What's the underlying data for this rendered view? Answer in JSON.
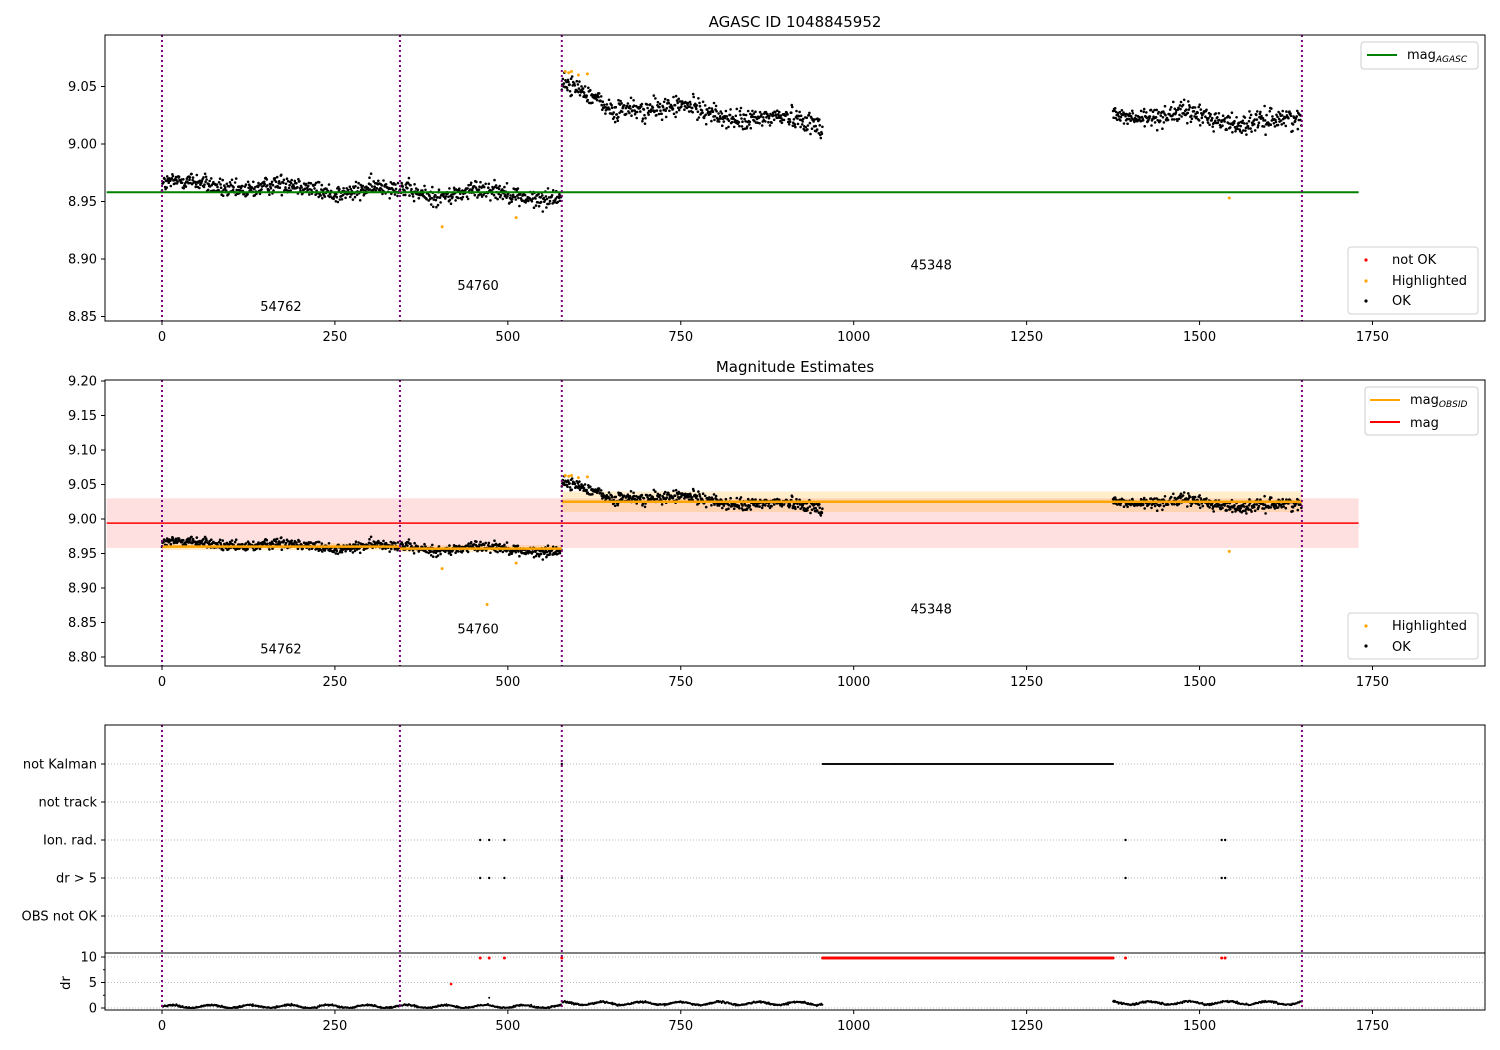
{
  "chart_data": [
    {
      "type": "scatter",
      "title": "AGASC ID 1048845952",
      "xlim": [
        -80,
        1915
      ],
      "ylim": [
        8.845,
        9.095
      ],
      "xticks": [
        0,
        250,
        500,
        750,
        1000,
        1250,
        1500,
        1750
      ],
      "yticks": [
        "8.85",
        "8.90",
        "8.95",
        "9.00",
        "9.05"
      ],
      "lines_legend": [
        {
          "label": "mag",
          "sub": "AGASC",
          "color": "#008000",
          "value": 8.958,
          "x": [
            -80,
            1730
          ]
        }
      ],
      "points_legend": [
        {
          "label": "not OK",
          "color": "#ff0000"
        },
        {
          "label": "Highlighted",
          "color": "#ffa500"
        },
        {
          "label": "OK",
          "color": "#000000"
        }
      ],
      "obsid_labels": [
        {
          "text": "54762",
          "x": 172,
          "y": 8.855
        },
        {
          "text": "54760",
          "x": 457,
          "y": 8.873
        },
        {
          "text": "45348",
          "x": 1112,
          "y": 8.891
        }
      ],
      "highlighted": [
        [
          405,
          8.928
        ],
        [
          512,
          8.936
        ],
        [
          583,
          9.063
        ],
        [
          588,
          9.062
        ],
        [
          592,
          9.063
        ],
        [
          602,
          9.06
        ],
        [
          615,
          9.061
        ],
        [
          1543,
          8.953
        ]
      ]
    },
    {
      "type": "scatter",
      "title": "Magnitude Estimates",
      "xlim": [
        -80,
        1915
      ],
      "ylim": [
        8.787,
        9.2
      ],
      "xticks": [
        0,
        250,
        500,
        750,
        1000,
        1250,
        1500,
        1750
      ],
      "yticks": [
        "8.80",
        "8.85",
        "8.90",
        "8.95",
        "9.00",
        "9.05",
        "9.10",
        "9.15",
        "9.20"
      ],
      "lines_legend": [
        {
          "label": "mag",
          "sub": "OBSID",
          "color": "#ffa500"
        },
        {
          "label": "mag",
          "sub": "",
          "color": "#ff0000",
          "value": 8.994,
          "band": [
            8.958,
            9.03
          ],
          "x": [
            -80,
            1730
          ]
        }
      ],
      "obsid_mags": [
        {
          "x": [
            0,
            344
          ],
          "value": 8.96,
          "band": [
            8.955,
            8.965
          ]
        },
        {
          "x": [
            344,
            578
          ],
          "value": 8.957,
          "band": [
            8.952,
            8.962
          ]
        },
        {
          "x": [
            578,
            1648
          ],
          "value": 9.025,
          "band": [
            9.01,
            9.04
          ]
        }
      ],
      "points_legend": [
        {
          "label": "Highlighted",
          "color": "#ffa500"
        },
        {
          "label": "OK",
          "color": "#000000"
        }
      ],
      "obsid_labels": [
        {
          "text": "54762",
          "x": 172,
          "y": 8.805
        },
        {
          "text": "54760",
          "x": 457,
          "y": 8.834
        },
        {
          "text": "45348",
          "x": 1112,
          "y": 8.863
        }
      ],
      "highlighted": [
        [
          405,
          8.928
        ],
        [
          470,
          8.876
        ],
        [
          512,
          8.936
        ],
        [
          583,
          9.063
        ],
        [
          588,
          9.062
        ],
        [
          592,
          9.063
        ],
        [
          602,
          9.06
        ],
        [
          615,
          9.061
        ],
        [
          1543,
          8.953
        ]
      ]
    },
    {
      "type": "scatter",
      "title": "",
      "ylabel": "dr",
      "categories": [
        "not Kalman",
        "not track",
        "Ion. rad.",
        "dr > 5",
        "OBS not OK"
      ],
      "dr_yticks": [
        "0",
        "5",
        "10"
      ],
      "xticks": [
        0,
        250,
        500,
        750,
        1000,
        1250,
        1500,
        1750
      ],
      "flags": {
        "not Kalman": {
          "ranges": [
            [
              955,
              1375
            ]
          ],
          "points": [
            578
          ]
        },
        "Ion. rad.": {
          "points": [
            460,
            473,
            495,
            578,
            1393,
            1532,
            1537
          ]
        },
        "dr > 5": {
          "points": [
            460,
            473,
            495,
            578,
            1393,
            1532,
            1537
          ]
        }
      },
      "dr_red": [
        [
          418,
          4.7
        ]
      ],
      "dr_segments": [
        {
          "x": [
            0,
            578
          ],
          "dr": 0.3
        },
        {
          "x": [
            578,
            955
          ],
          "dr": 0.9
        },
        {
          "x": [
            1375,
            1648
          ],
          "dr": 1.0
        }
      ]
    }
  ],
  "series_model": {
    "mag_segments": [
      {
        "x": [
          0,
          578
        ],
        "mag": [
          8.965,
          8.955
        ],
        "scatter": 0.008
      },
      {
        "x": [
          578,
          660
        ],
        "mag": [
          9.053,
          9.025
        ],
        "scatter": 0.008
      },
      {
        "x": [
          660,
          955
        ],
        "mag": [
          9.035,
          9.017
        ],
        "scatter": 0.009
      },
      {
        "x": [
          1375,
          1648
        ],
        "mag": [
          9.027,
          9.018
        ],
        "scatter": 0.009
      }
    ],
    "obsid_boundaries": [
      0,
      344,
      578,
      1648
    ]
  }
}
